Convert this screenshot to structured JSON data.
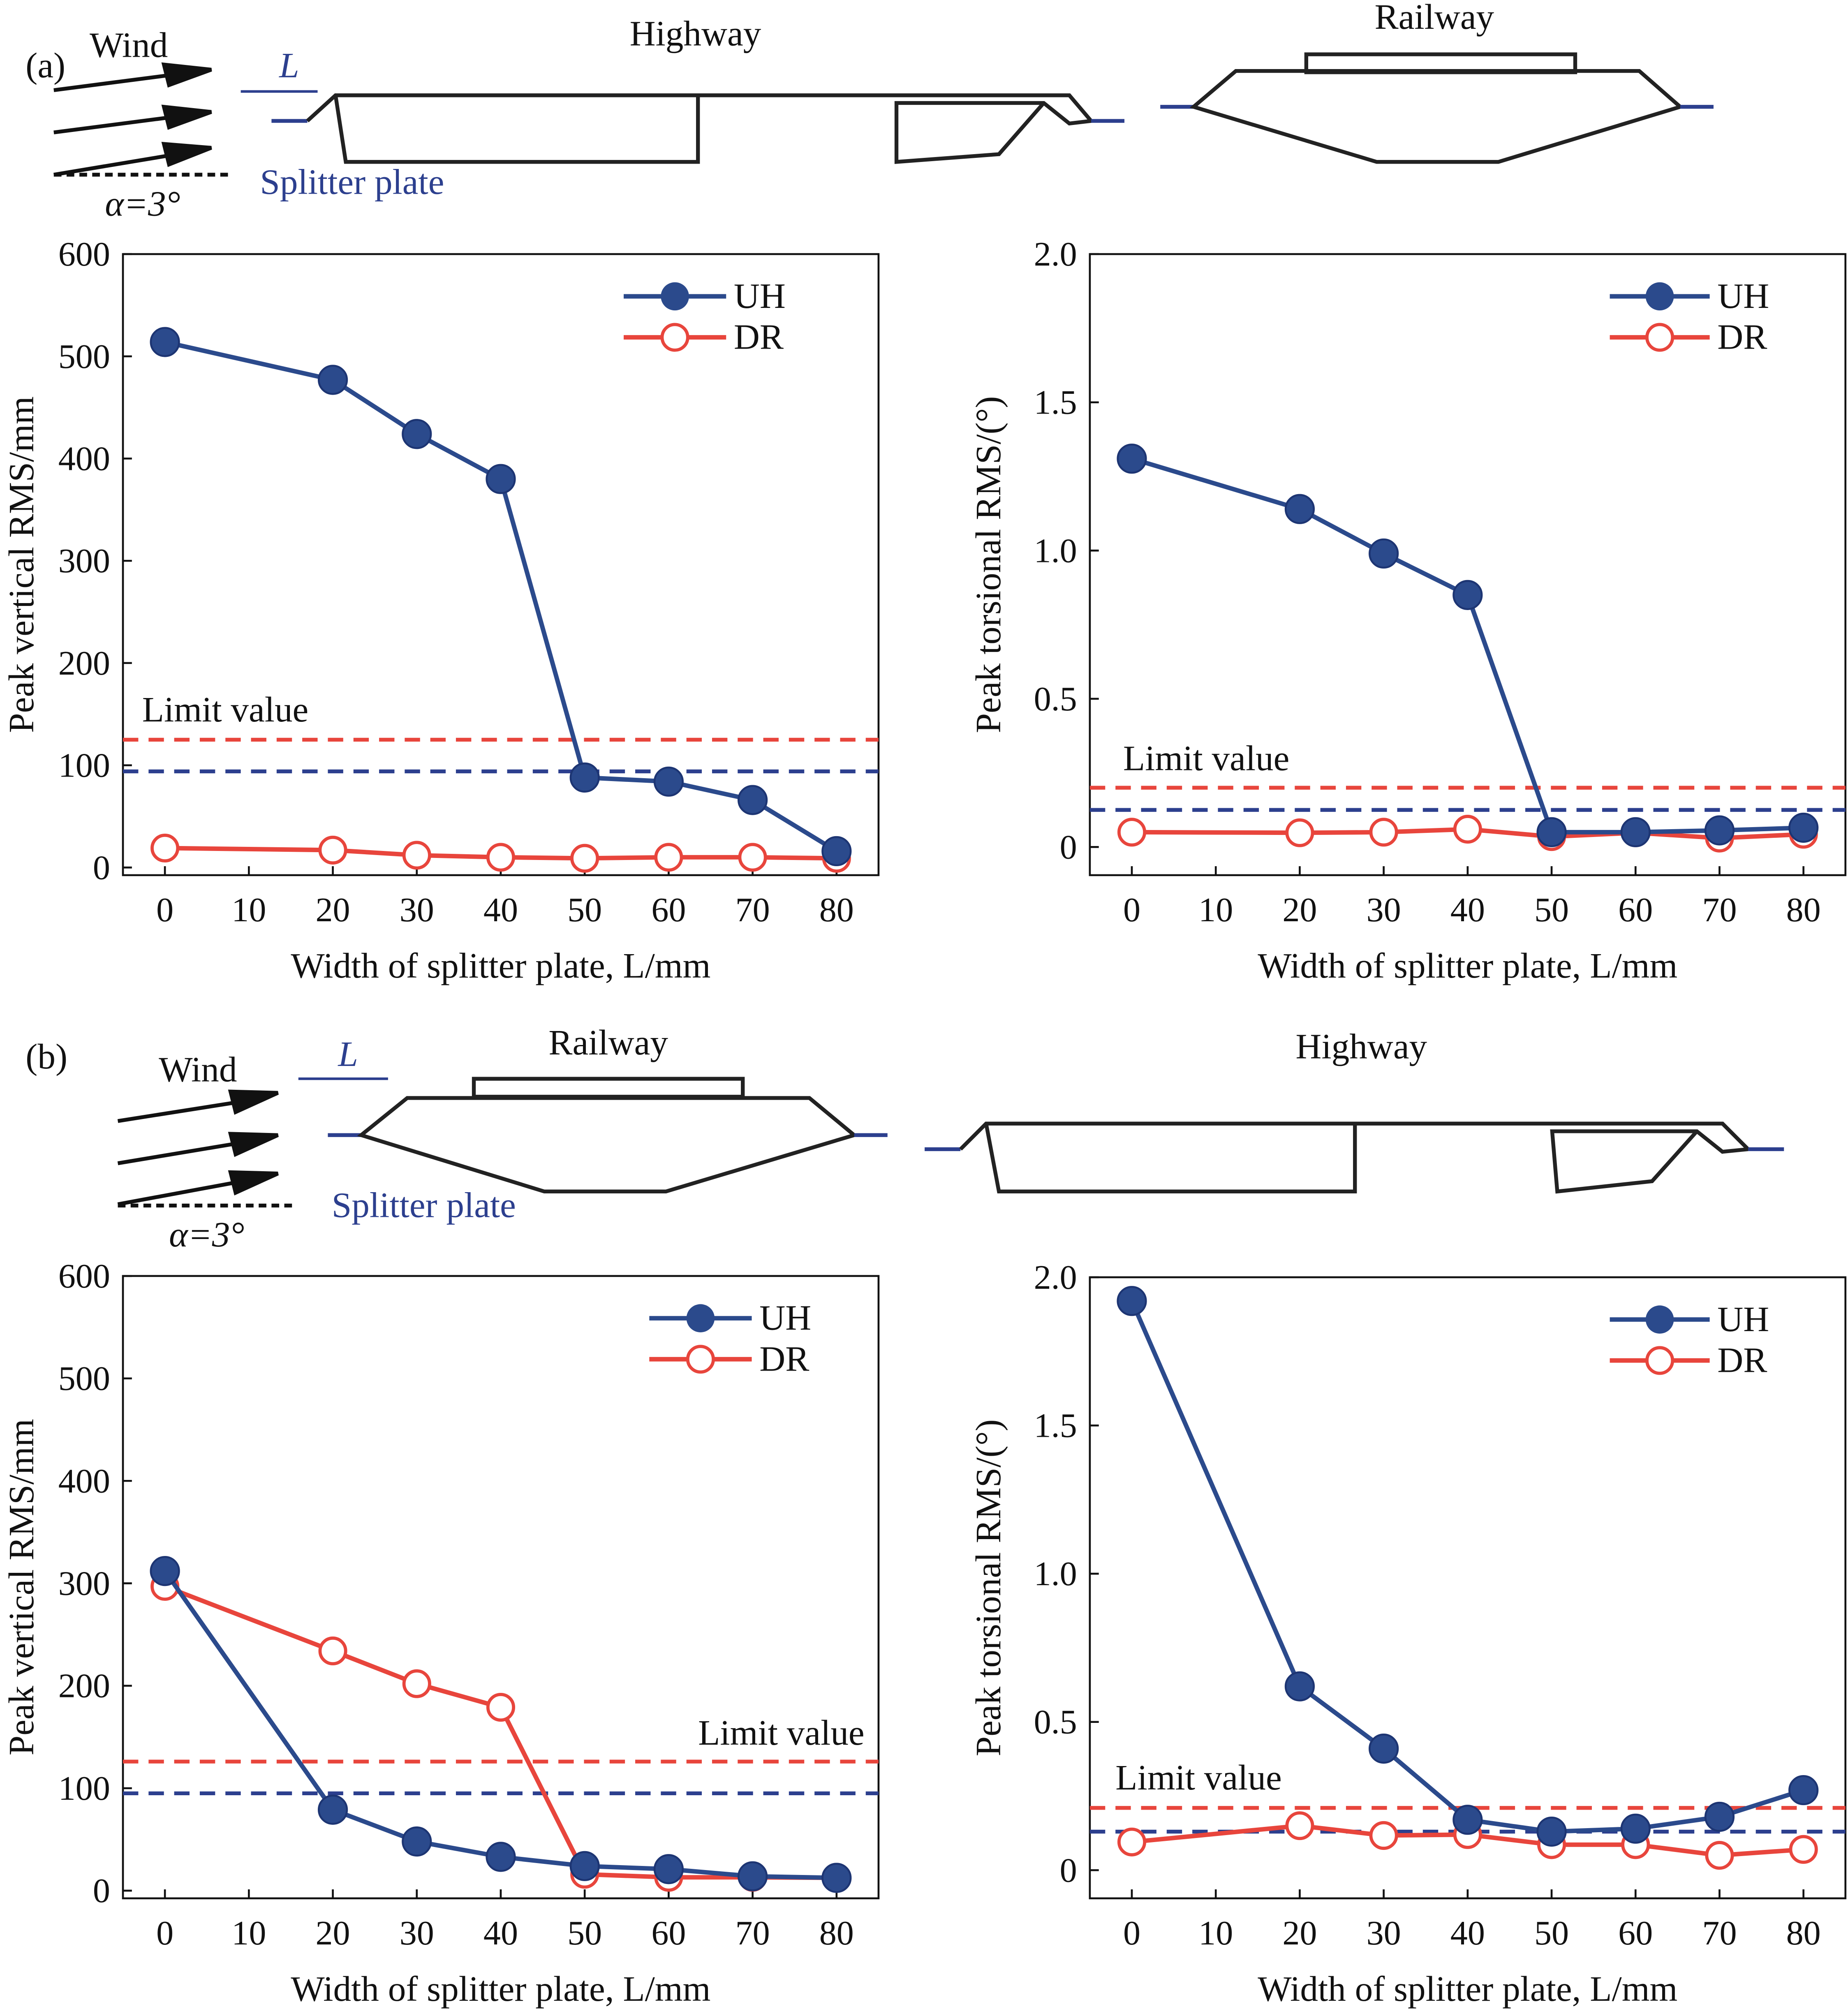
{
  "colors": {
    "uh": "#2b4a8c",
    "dr": "#e8453c",
    "limit_red": "#e8453c",
    "limit_blue": "#2c3f8e",
    "splitter": "#2c3f8e"
  },
  "schematics": {
    "a": {
      "label": "(a)",
      "wind": "Wind",
      "L": "L",
      "alpha": "α=3°",
      "splitter": "Splitter plate",
      "left_deck": "Highway",
      "right_deck": "Railway"
    },
    "b": {
      "label": "(b)",
      "wind": "Wind",
      "L": "L",
      "alpha": "α=3°",
      "splitter": "Splitter plate",
      "left_deck": "Railway",
      "right_deck": "Highway"
    }
  },
  "chart_data": [
    {
      "id": "a-vertical",
      "type": "line",
      "xlabel": "Width of splitter plate, L/mm",
      "ylabel": "Peak vertical RMS/mm",
      "xlim": [
        -5,
        85
      ],
      "ylim": [
        -7.5,
        600
      ],
      "xticks": [
        0,
        10,
        20,
        30,
        40,
        50,
        60,
        70,
        80
      ],
      "yticks": [
        0,
        100,
        200,
        300,
        400,
        500,
        600
      ],
      "x": [
        0,
        20,
        30,
        40,
        50,
        60,
        70,
        80
      ],
      "series": [
        {
          "name": "UH",
          "marker": "filled",
          "values": [
            514,
            477,
            424,
            380,
            88,
            84,
            66,
            16
          ]
        },
        {
          "name": "DR",
          "marker": "open",
          "values": [
            19,
            17,
            12,
            10,
            9,
            10,
            10,
            9
          ]
        }
      ],
      "limits": [
        {
          "color": "red",
          "value": 125
        },
        {
          "color": "blue",
          "value": 94
        }
      ],
      "annotation": "Limit value",
      "legend": "top-right"
    },
    {
      "id": "a-torsional",
      "type": "line",
      "xlabel": "Width of splitter plate, L/mm",
      "ylabel": "Peak torsional RMS/(°)",
      "xlim": [
        -5,
        85
      ],
      "ylim": [
        -0.095,
        2.0
      ],
      "xticks": [
        0,
        10,
        20,
        30,
        40,
        50,
        60,
        70,
        80
      ],
      "yticks": [
        "0",
        "0.5",
        "1.0",
        "1.5",
        "2.0"
      ],
      "x": [
        0,
        20,
        30,
        40,
        50,
        60,
        70,
        80
      ],
      "series": [
        {
          "name": "UH",
          "marker": "filled",
          "values": [
            1.31,
            1.14,
            0.99,
            0.85,
            0.05,
            0.05,
            0.056,
            0.065
          ]
        },
        {
          "name": "DR",
          "marker": "open",
          "values": [
            0.05,
            0.048,
            0.05,
            0.06,
            0.035,
            0.048,
            0.03,
            0.043
          ]
        }
      ],
      "limits": [
        {
          "color": "red",
          "value": 0.2
        },
        {
          "color": "blue",
          "value": 0.125
        }
      ],
      "annotation": "Limit value",
      "legend": "top-right"
    },
    {
      "id": "b-vertical",
      "type": "line",
      "xlabel": "Width of splitter plate, L/mm",
      "ylabel": "Peak vertical RMS/mm",
      "xlim": [
        -5,
        85
      ],
      "ylim": [
        -7.5,
        600
      ],
      "xticks": [
        0,
        10,
        20,
        30,
        40,
        50,
        60,
        70,
        80
      ],
      "yticks": [
        0,
        100,
        200,
        300,
        400,
        500,
        600
      ],
      "x": [
        0,
        20,
        30,
        40,
        50,
        60,
        70,
        80
      ],
      "series": [
        {
          "name": "UH",
          "marker": "filled",
          "values": [
            312,
            79,
            48,
            33,
            24,
            21,
            14,
            12.5
          ]
        },
        {
          "name": "DR",
          "marker": "open",
          "values": [
            297,
            234,
            202,
            179,
            16,
            13,
            13,
            12.5
          ]
        }
      ],
      "limits": [
        {
          "color": "red",
          "value": 126
        },
        {
          "color": "blue",
          "value": 95
        }
      ],
      "annotation": "Limit value",
      "legend": "top-right"
    },
    {
      "id": "b-torsional",
      "type": "line",
      "xlabel": "Width of splitter plate, L/mm",
      "ylabel": "Peak torsional RMS/(°)",
      "xlim": [
        -5,
        85
      ],
      "ylim": [
        -0.095,
        2.0
      ],
      "xticks": [
        0,
        10,
        20,
        30,
        40,
        50,
        60,
        70,
        80
      ],
      "yticks": [
        "0",
        "0.5",
        "1.0",
        "1.5",
        "2.0"
      ],
      "x": [
        0,
        20,
        30,
        40,
        50,
        60,
        70,
        80
      ],
      "series": [
        {
          "name": "UH",
          "marker": "filled",
          "values": [
            1.92,
            0.62,
            0.41,
            0.17,
            0.13,
            0.14,
            0.18,
            0.27
          ]
        },
        {
          "name": "DR",
          "marker": "open",
          "values": [
            0.095,
            0.15,
            0.117,
            0.12,
            0.086,
            0.086,
            0.05,
            0.07
          ]
        }
      ],
      "limits": [
        {
          "color": "red",
          "value": 0.21
        },
        {
          "color": "blue",
          "value": 0.13
        }
      ],
      "annotation": "Limit value",
      "legend": "top-right"
    }
  ]
}
